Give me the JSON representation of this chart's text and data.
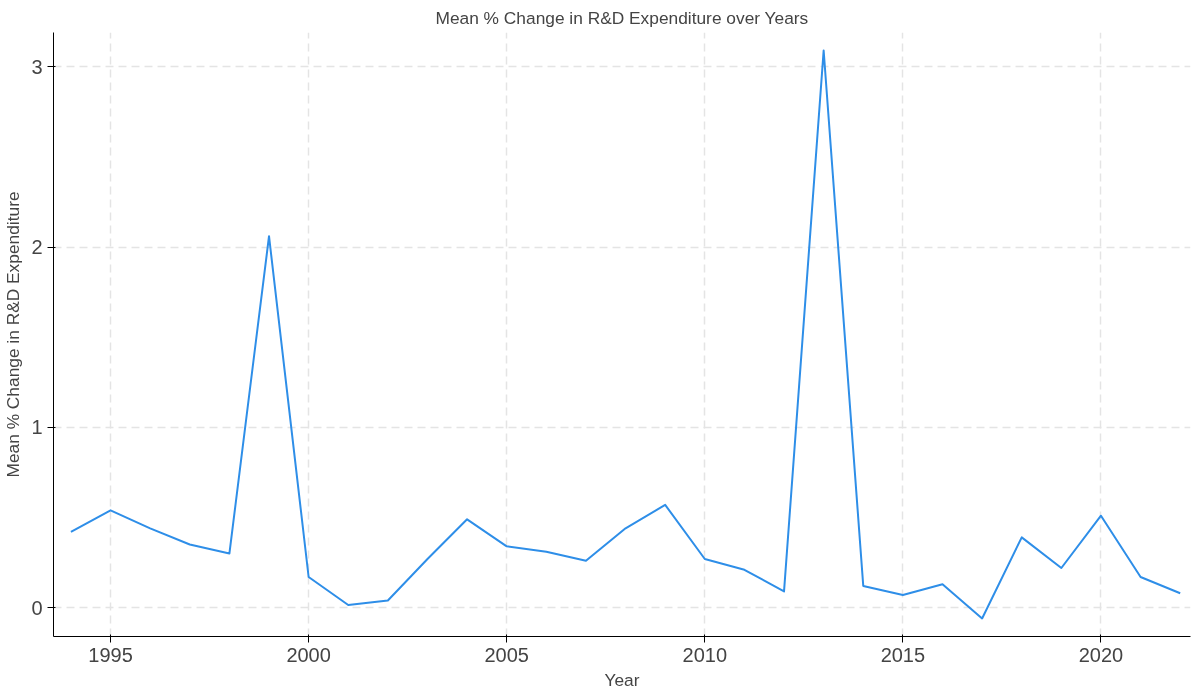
{
  "chart_data": {
    "type": "line",
    "title": "Mean % Change in R&D Expenditure over Years",
    "xlabel": "Year",
    "ylabel": "Mean % Change in R&D Expenditure",
    "x": [
      1994,
      1995,
      1996,
      1997,
      1998,
      1999,
      2000,
      2001,
      2002,
      2003,
      2004,
      2005,
      2006,
      2007,
      2008,
      2009,
      2010,
      2011,
      2012,
      2013,
      2014,
      2015,
      2016,
      2017,
      2018,
      2019,
      2020,
      2021,
      2022
    ],
    "series": [
      {
        "color": "#2e8ee8",
        "values": [
          0.42,
          0.54,
          0.44,
          0.35,
          0.3,
          2.06,
          0.17,
          0.015,
          0.04,
          0.27,
          0.49,
          0.34,
          0.31,
          0.26,
          0.44,
          0.57,
          0.27,
          0.21,
          0.09,
          3.09,
          0.12,
          0.07,
          0.13,
          -0.06,
          0.39,
          0.22,
          0.51,
          0.17,
          0.08
        ]
      }
    ],
    "xlim": [
      1993.56,
      2022.26
    ],
    "ylim": [
      -0.16,
      3.19
    ],
    "xticks": [
      1995,
      2000,
      2005,
      2010,
      2015,
      2020
    ],
    "yticks": [
      0,
      1,
      2,
      3
    ],
    "grid": true,
    "line_style": "solid",
    "marker": "none"
  }
}
